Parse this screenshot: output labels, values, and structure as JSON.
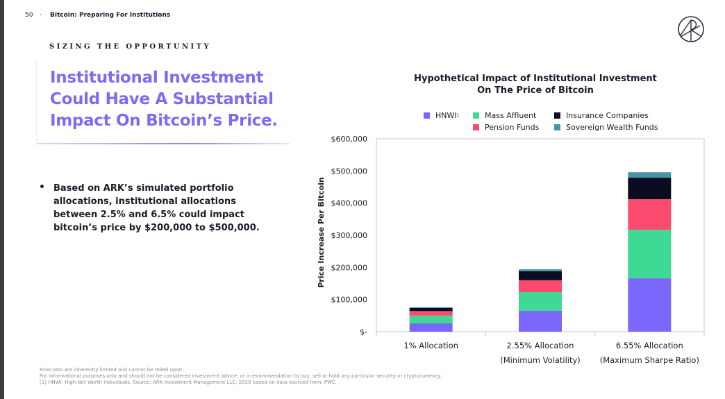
{
  "header": {
    "page_number": "50",
    "separator": "·",
    "document_title": "Bitcoin: Preparing For Institutions",
    "logo": "ark-logo-icon"
  },
  "section": {
    "kicker": "SIZING THE OPPORTUNITY",
    "headline_lines": [
      "Institutional Investment",
      "Could Have A Substantial",
      "Impact On Bitcoin’s Price."
    ],
    "bullet_marker": "•",
    "bullet_text": "Based on ARK’s simulated portfolio allocations, institutional allocations between 2.5% and 6.5% could impact bitcoin’s price by $200,000 to $500,000."
  },
  "colors": {
    "accent": "#7a6cf5",
    "hnwi": "#7b66fb",
    "mass_affluent": "#3dd995",
    "pension_funds": "#fb4b6e",
    "insurance_companies": "#0b0b22",
    "sovereign_wealth_funds": "#4597a8"
  },
  "chart_data": {
    "type": "bar",
    "stacked": true,
    "title": "Hypothetical Impact of Institutional Investment On The Price of Bitcoin",
    "title_lines": [
      "Hypothetical Impact of Institutional Investment",
      "On The Price of Bitcoin"
    ],
    "xlabel": "",
    "ylabel": "Price Increase Per Bitcoin",
    "ylim": [
      0,
      600000
    ],
    "yticks": [
      0,
      100000,
      200000,
      300000,
      400000,
      500000,
      600000
    ],
    "ytick_labels": [
      "$-",
      "$100,000",
      "$200,000",
      "$300,000",
      "$400,000",
      "$500,000",
      "$600,000"
    ],
    "grid": false,
    "legend_position": "top",
    "categories": [
      [
        "1% Allocation"
      ],
      [
        "2.55% Allocation",
        "(Minimum Volatility)"
      ],
      [
        "6.55% Allocation",
        "(Maximum Sharpe Ratio)"
      ]
    ],
    "series": [
      {
        "name": "HNWI",
        "superscript": "1",
        "color": "#7b66fb",
        "values": [
          26000,
          65000,
          166000
        ]
      },
      {
        "name": "Mass Affluent",
        "color": "#3dd995",
        "values": [
          24000,
          58000,
          151000
        ]
      },
      {
        "name": "Pension Funds",
        "color": "#fb4b6e",
        "values": [
          14000,
          37000,
          95000
        ]
      },
      {
        "name": "Insurance Companies",
        "color": "#0b0b22",
        "values": [
          10000,
          28000,
          67000
        ]
      },
      {
        "name": "Sovereign Wealth Funds",
        "color": "#4597a8",
        "values": [
          2000,
          6000,
          17000
        ]
      }
    ],
    "legend_order": [
      0,
      1,
      3,
      2,
      4
    ]
  },
  "footer": {
    "lines": [
      "Forecasts are inherently limited and cannot be relied upon.",
      "For informational purposes only and should not be considered investment advice, or a recommendation to buy, sell or hold any particular security or cryptocurrency.",
      "[1] HNWI: High Net Worth Individuals. Source: ARK Investment Management LLC, 2020 based on data sourced from: PWC"
    ]
  }
}
